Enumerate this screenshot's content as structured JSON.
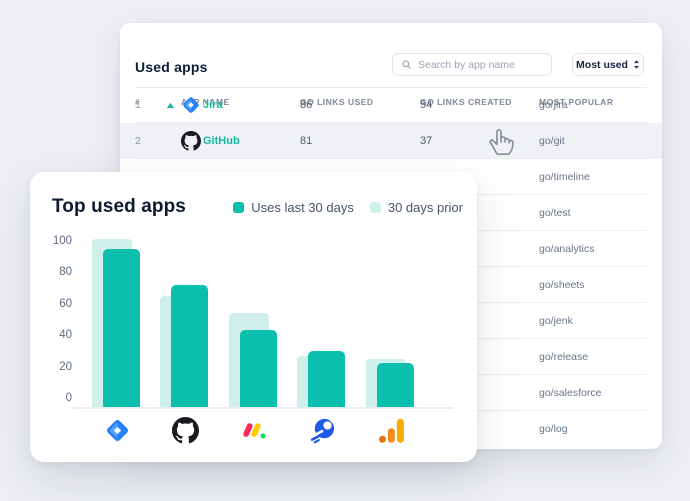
{
  "used_apps": {
    "title": "Used apps",
    "search_placeholder": "Search by app name",
    "sort_value": "Most used",
    "columns": [
      "#",
      "APP NAME",
      "GO LINKS USED",
      "GO LINKS CREATED",
      "MOST POPULAR"
    ],
    "rows": [
      {
        "index": "1",
        "rank_change": "up",
        "app_name": "Jira",
        "app_icon": "jira-icon",
        "go_links_used": "86",
        "go_links_created": "54",
        "most_popular": "go/jira",
        "highlighted": false
      },
      {
        "index": "2",
        "app_name": "GitHub",
        "app_icon": "github-icon",
        "go_links_used": "81",
        "go_links_created": "37",
        "most_popular": "go/git",
        "highlighted": true
      },
      {
        "most_popular": "go/timeline"
      },
      {
        "most_popular": "go/test"
      },
      {
        "most_popular": "go/analytics"
      },
      {
        "most_popular": "go/sheets"
      },
      {
        "most_popular": "go/jenk"
      },
      {
        "most_popular": "go/release"
      },
      {
        "most_popular": "go/salesforce"
      },
      {
        "most_popular": "go/log"
      }
    ]
  },
  "chart_data": {
    "type": "bar",
    "title": "Top used apps",
    "categories": [
      "Jira",
      "GitHub",
      "monday.com",
      "Rocket",
      "Google Analytics"
    ],
    "category_icons": [
      "jira-icon",
      "github-icon",
      "monday-icon",
      "rocket-icon",
      "google-analytics-icon"
    ],
    "series": [
      {
        "name": "Uses last 30 days",
        "color": "#0abfad",
        "values": [
          95,
          72,
          43,
          30,
          22
        ]
      },
      {
        "name": "30 days prior",
        "color": "#cff0ea",
        "values": [
          101,
          65,
          54,
          27,
          25
        ]
      }
    ],
    "yticks": [
      0,
      20,
      40,
      60,
      80,
      100
    ],
    "ylim": [
      0,
      105
    ],
    "grid": false,
    "legend_position": "top-right",
    "xlabel": "",
    "ylabel": ""
  },
  "icons": {
    "search": "search-icon",
    "sort": "sort-arrows-icon",
    "rank_up": "rank-up-triangle-icon",
    "cursor": "hand-pointer-icon"
  },
  "colors": {
    "page_bg": "#edeff3",
    "card_bg": "#ffffff",
    "accent_teal": "#0abfad",
    "accent_teal_light": "#cff0ea",
    "app_name_text": "#14b9a2",
    "row_highlight": "#f0f1f4",
    "title_text": "#0d1b34",
    "muted_text": "#7e899b"
  }
}
